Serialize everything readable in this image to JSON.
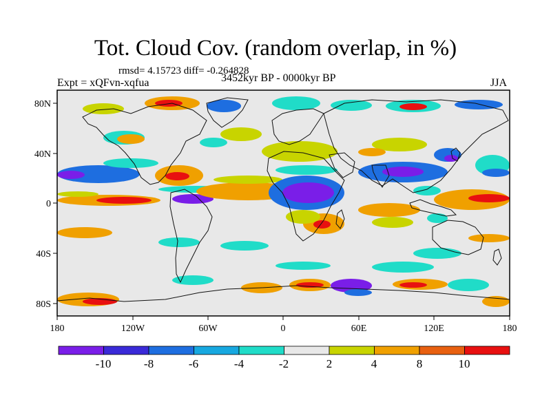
{
  "title": "Tot. Cloud Cov. (random overlap, in %)",
  "stats": "rmsd= 4.15723 diff= -0.264828",
  "experiment": "Expt = xQFvn-xqfua",
  "period": "3452kyr BP - 0000kyr BP",
  "season": "JJA",
  "axes": {
    "lon_ticks": [
      "180",
      "120W",
      "60W",
      "0",
      "60E",
      "120E",
      "180"
    ],
    "lat_ticks": [
      "80N",
      "40N",
      "0",
      "40S",
      "80S"
    ]
  },
  "colorbar": {
    "labels": [
      "-10",
      "-8",
      "-6",
      "-4",
      "-2",
      "2",
      "4",
      "8",
      "10"
    ],
    "colors": [
      "#7a1ee8",
      "#3a2ad8",
      "#1e6ee0",
      "#17a8e0",
      "#20dcc8",
      "#e8e8e8",
      "#c8d400",
      "#f0a000",
      "#e86010",
      "#e81010"
    ]
  },
  "field_colors": {
    "neutral": "#e8e8e8",
    "strong_negative": "#7a1ee8",
    "negative": "#1e6ee0",
    "weak_negative": "#20dcc8",
    "weak_positive": "#c8d400",
    "positive": "#f0a000",
    "strong_positive": "#e81010"
  }
}
